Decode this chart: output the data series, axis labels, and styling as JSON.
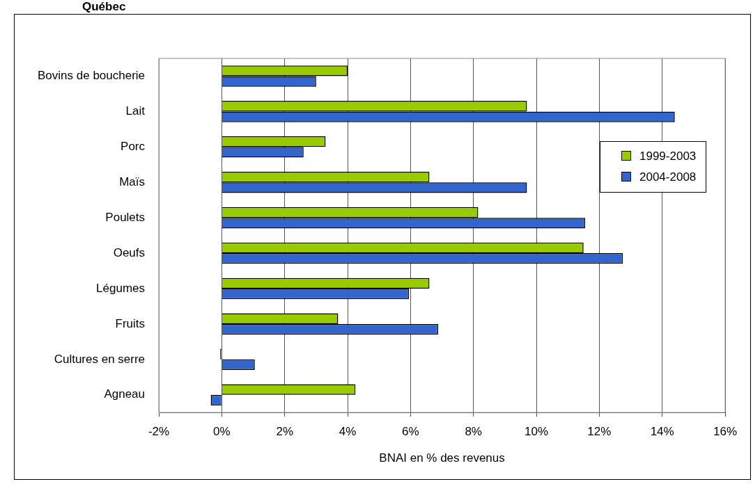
{
  "chart_data": {
    "type": "bar",
    "orientation": "horizontal",
    "title": "Québec",
    "xlabel": "BNAI en % des revenus",
    "categories": [
      "Bovins de boucherie",
      "Lait",
      "Porc",
      "Maïs",
      "Poulets",
      "Oeufs",
      "Légumes",
      "Fruits",
      "Cultures en serre",
      "Agneau"
    ],
    "series": [
      {
        "name": "1999-2003",
        "color": "#99cc00",
        "values": [
          4.0,
          9.7,
          3.3,
          6.6,
          8.15,
          11.5,
          6.6,
          3.7,
          -0.05,
          4.25
        ]
      },
      {
        "name": "2004-2008",
        "color": "#3366cc",
        "values": [
          3.0,
          14.4,
          2.6,
          9.7,
          11.55,
          12.75,
          5.95,
          6.88,
          1.05,
          -0.35
        ]
      }
    ],
    "xlim": [
      -2,
      16
    ],
    "xticks": [
      {
        "value": -2,
        "label": "-2%"
      },
      {
        "value": 0,
        "label": "0%"
      },
      {
        "value": 2,
        "label": "2%"
      },
      {
        "value": 4,
        "label": "4%"
      },
      {
        "value": 6,
        "label": "6%"
      },
      {
        "value": 8,
        "label": "8%"
      },
      {
        "value": 10,
        "label": "10%"
      },
      {
        "value": 12,
        "label": "12%"
      },
      {
        "value": 14,
        "label": "14%"
      },
      {
        "value": 16,
        "label": "16%"
      }
    ],
    "grid": "x",
    "legend": "right"
  }
}
